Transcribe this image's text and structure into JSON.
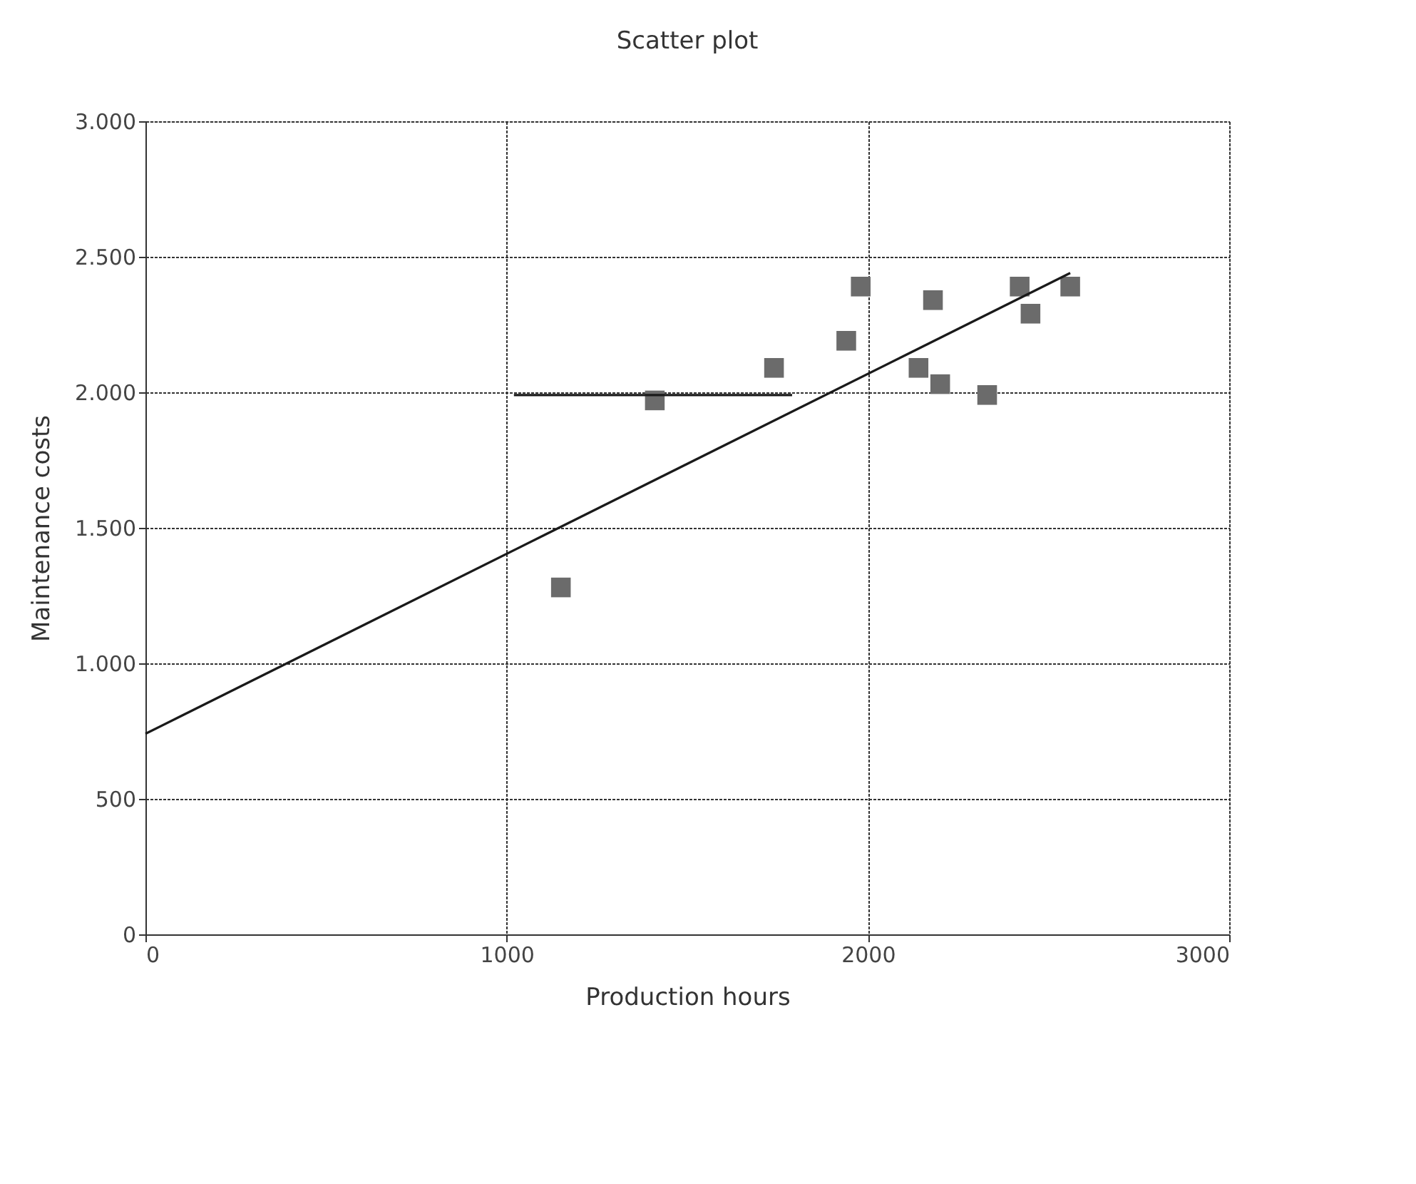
{
  "chart_data": {
    "type": "scatter",
    "title": "Scatter plot",
    "xlabel": "Production hours",
    "ylabel": "Maintenance costs",
    "series": [
      {
        "color": "#6b6b6b",
        "marker": "square",
        "x": [
          1150,
          1410,
          1740,
          1940,
          1980,
          2140,
          2180,
          2200,
          2330,
          2420,
          2450,
          2560
        ],
        "values": [
          1280,
          1970,
          2090,
          2190,
          2390,
          2090,
          2340,
          2030,
          1990,
          2390,
          2290,
          2390
        ]
      },
      {
        "type": "line",
        "color": "#1a1a1a",
        "marker": "none",
        "line_style": "solid",
        "x": [
          0,
          2560
        ],
        "values": [
          740,
          2440
        ]
      },
      {
        "type": "line",
        "color": "#1a1a1a",
        "marker": "none",
        "line_style": "solid",
        "x": [
          1020,
          1790
        ],
        "values": [
          1990,
          1990
        ]
      }
    ],
    "xlim": [
      0,
      3000
    ],
    "xticks": [
      0,
      1000,
      2000,
      3000
    ],
    "ylim": [
      0,
      3000
    ],
    "yticks": [
      0,
      500,
      {
        "value": 1000,
        "label": "1.000"
      },
      {
        "value": 1500,
        "label": "1.500"
      },
      {
        "value": 2000,
        "label": "2.000"
      },
      {
        "value": 2500,
        "label": "2.500"
      },
      {
        "value": 3000,
        "label": "3.000"
      }
    ],
    "grid": true
  }
}
